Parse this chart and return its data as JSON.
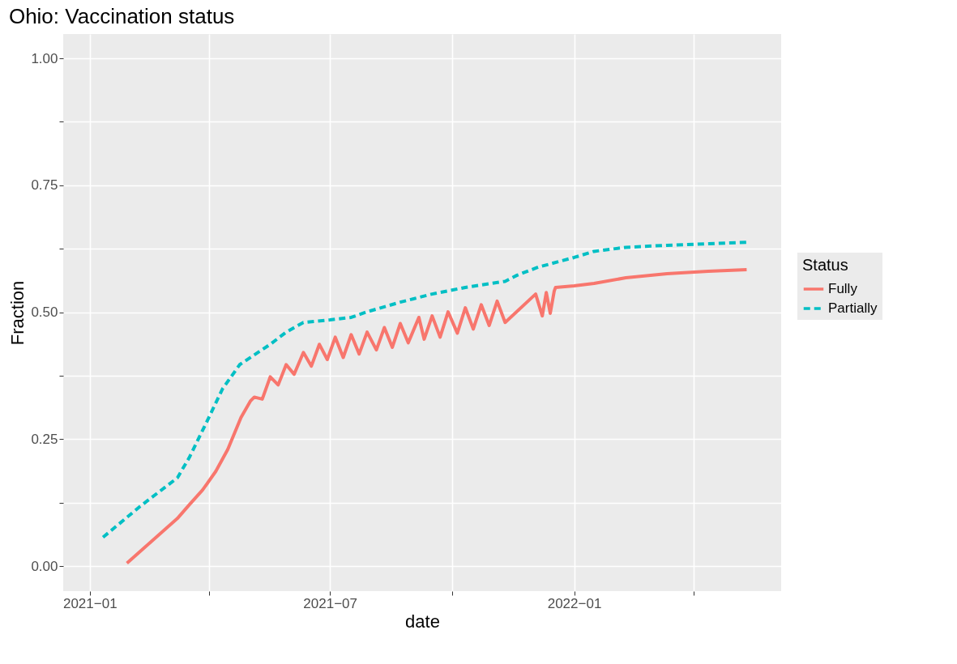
{
  "chart_data": {
    "type": "line",
    "title": "Ohio: Vaccination status",
    "xlabel": "date",
    "ylabel": "Fraction",
    "legend_title": "Status",
    "legend": "right",
    "grid": true,
    "xlim": [
      "2020-12-12",
      "2022-06-06"
    ],
    "xticks": [
      {
        "value": "2021-01",
        "label": "2021−01"
      },
      {
        "value": "2021-04",
        "label": null
      },
      {
        "value": "2021-07",
        "label": "2021−07"
      },
      {
        "value": "2021-10",
        "label": null
      },
      {
        "value": "2022-01",
        "label": "2022−01"
      },
      {
        "value": "2022-04",
        "label": null
      }
    ],
    "ylim": [
      -0.049,
      1.048
    ],
    "yticks": [
      {
        "value": 0,
        "label": "0.00"
      },
      {
        "value": 0.125,
        "label": null
      },
      {
        "value": 0.25,
        "label": "0.25"
      },
      {
        "value": 0.375,
        "label": null
      },
      {
        "value": 0.5,
        "label": "0.50"
      },
      {
        "value": 0.625,
        "label": null
      },
      {
        "value": 0.75,
        "label": "0.75"
      },
      {
        "value": 0.875,
        "label": null
      },
      {
        "value": 1,
        "label": "1.00"
      }
    ],
    "series": [
      {
        "name": "Fully",
        "color": "#f8766d",
        "line_style": "solid",
        "x": [
          "2021-01-29",
          "2021-03-08",
          "2021-03-17",
          "2021-03-27",
          "2021-04-06",
          "2021-04-15",
          "2021-04-25",
          "2021-05-02",
          "2021-05-05",
          "2021-05-11",
          "2021-05-17",
          "2021-05-23",
          "2021-05-29",
          "2021-06-04",
          "2021-06-11",
          "2021-06-17",
          "2021-06-23",
          "2021-06-29",
          "2021-07-05",
          "2021-07-11",
          "2021-07-17",
          "2021-07-23",
          "2021-07-29",
          "2021-08-05",
          "2021-08-11",
          "2021-08-17",
          "2021-08-23",
          "2021-08-29",
          "2021-09-06",
          "2021-09-10",
          "2021-09-16",
          "2021-09-22",
          "2021-09-28",
          "2021-10-05",
          "2021-10-11",
          "2021-10-17",
          "2021-10-23",
          "2021-10-29",
          "2021-11-04",
          "2021-11-10",
          "2021-12-03",
          "2021-12-08",
          "2021-12-11",
          "2021-12-14",
          "2021-12-17",
          "2021-12-18",
          "2022-01-01",
          "2022-01-16",
          "2022-02-09",
          "2022-03-12",
          "2022-04-12",
          "2022-05-11"
        ],
        "values": [
          0.006,
          0.094,
          0.121,
          0.15,
          0.187,
          0.23,
          0.293,
          0.325,
          0.333,
          0.329,
          0.373,
          0.357,
          0.397,
          0.378,
          0.421,
          0.394,
          0.437,
          0.407,
          0.451,
          0.411,
          0.456,
          0.418,
          0.461,
          0.426,
          0.47,
          0.431,
          0.478,
          0.44,
          0.49,
          0.447,
          0.493,
          0.451,
          0.501,
          0.459,
          0.509,
          0.467,
          0.515,
          0.474,
          0.522,
          0.48,
          0.536,
          0.493,
          0.539,
          0.498,
          0.542,
          0.549,
          0.552,
          0.557,
          0.568,
          0.576,
          0.581,
          0.584
        ]
      },
      {
        "name": "Partially",
        "color": "#00bfc4",
        "line_style": "dashed",
        "x": [
          "2021-01-11",
          "2021-02-08",
          "2021-03-08",
          "2021-03-17",
          "2021-03-29",
          "2021-04-11",
          "2021-04-24",
          "2021-05-17",
          "2021-05-29",
          "2021-06-11",
          "2021-07-01",
          "2021-07-17",
          "2021-07-29",
          "2021-08-23",
          "2021-09-16",
          "2021-10-11",
          "2021-11-10",
          "2021-11-19",
          "2021-12-05",
          "2022-01-01",
          "2022-01-16",
          "2022-02-09",
          "2022-03-12",
          "2022-04-12",
          "2022-05-11"
        ],
        "values": [
          0.057,
          0.118,
          0.174,
          0.214,
          0.278,
          0.349,
          0.397,
          0.437,
          0.461,
          0.48,
          0.485,
          0.49,
          0.501,
          0.52,
          0.536,
          0.549,
          0.561,
          0.573,
          0.589,
          0.608,
          0.62,
          0.628,
          0.632,
          0.635,
          0.638
        ]
      }
    ]
  }
}
